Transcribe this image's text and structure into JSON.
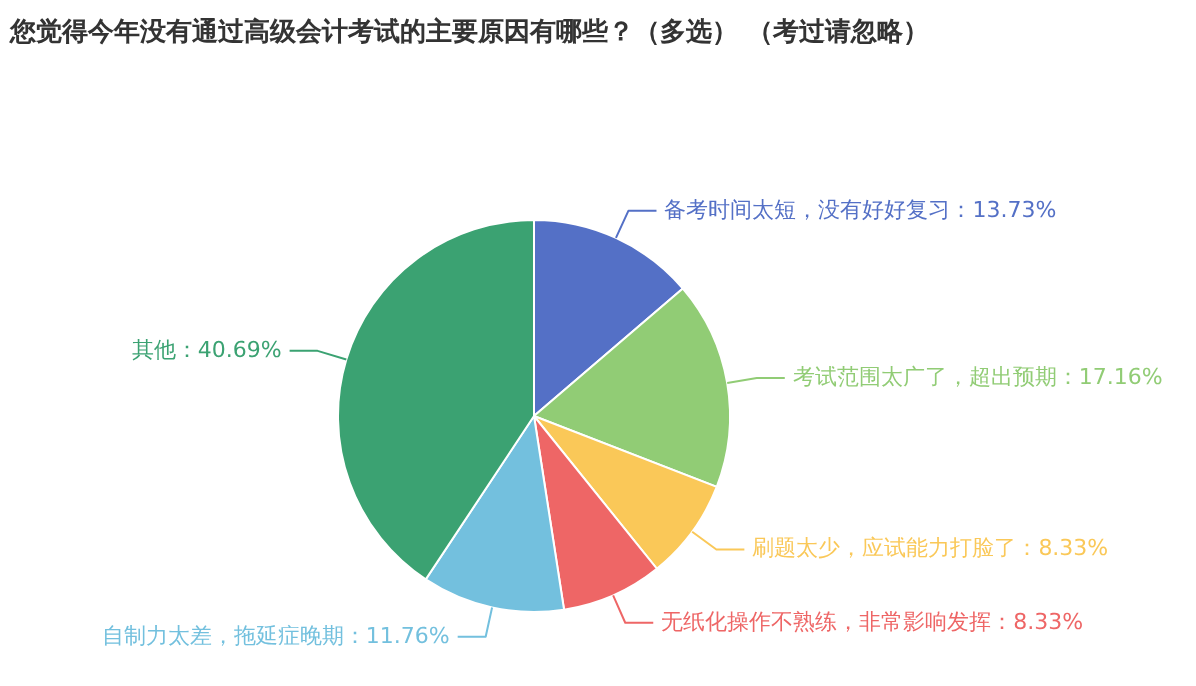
{
  "chart_data": {
    "type": "pie",
    "title": "您觉得今年没有通过高级会计考试的主要原因有哪些？（多选） （考过请忽略）",
    "categories": [
      "备考时间太短，没有好好复习",
      "考试范围太广了，超出预期",
      "刷题太少，应试能力打脸了",
      "无纸化操作不熟练，非常影响发挥",
      "自制力太差，拖延症晚期",
      "其他"
    ],
    "values": [
      13.73,
      17.16,
      8.33,
      8.33,
      11.76,
      40.69
    ],
    "colors": [
      "#5470c6",
      "#91cc75",
      "#fac858",
      "#ee6666",
      "#73c0de",
      "#3ba272"
    ],
    "value_labels": [
      "13.73%",
      "17.16%",
      "8.33%",
      "8.33%",
      "11.76%",
      "40.69%"
    ]
  }
}
